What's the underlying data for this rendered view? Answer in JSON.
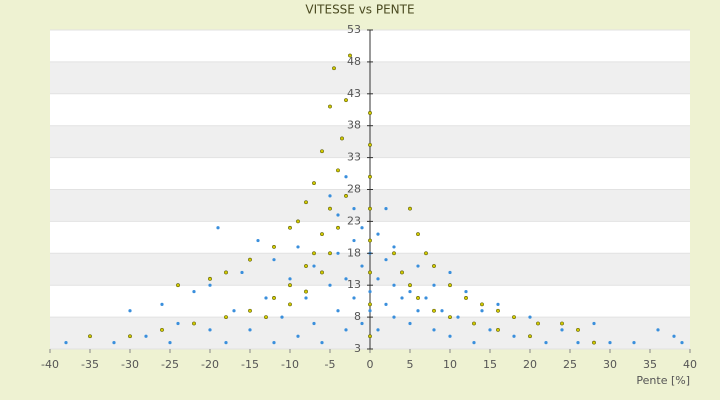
{
  "chart_data": {
    "type": "scatter",
    "title": "VITESSE vs PENTE",
    "x_label": "Pente [%]",
    "xlim": [
      -40,
      40
    ],
    "xticks": [
      -40,
      -35,
      -30,
      -25,
      -20,
      -15,
      -10,
      -5,
      0,
      5,
      10,
      15,
      20,
      25,
      30,
      35,
      40
    ],
    "ylim": [
      3,
      53
    ],
    "yticks": [
      3,
      8,
      13,
      18,
      23,
      28,
      33,
      38,
      43,
      48,
      53
    ],
    "grid": true,
    "series": [
      {
        "color": "#3a8fdc",
        "x": [
          -38,
          -35,
          -32,
          -30,
          -28,
          -26,
          -25,
          -24,
          -22,
          -20,
          -20,
          -19,
          -18,
          -17,
          -16,
          -15,
          -14,
          -13,
          -12,
          -12,
          -11,
          -10,
          -10,
          -9,
          -9,
          -8,
          -8,
          -7,
          -7,
          -6,
          -6,
          -5,
          -5,
          -4,
          -4,
          -4,
          -3,
          -3,
          -3,
          -2,
          -2,
          -2,
          -1,
          -1,
          -1,
          0,
          0,
          0,
          1,
          1,
          1,
          2,
          2,
          2,
          3,
          3,
          3,
          4,
          4,
          5,
          5,
          6,
          6,
          7,
          8,
          8,
          9,
          10,
          10,
          11,
          12,
          13,
          14,
          15,
          16,
          18,
          20,
          22,
          24,
          26,
          28,
          30,
          33,
          36,
          38,
          39
        ],
        "y": [
          4,
          5,
          4,
          9,
          5,
          10,
          4,
          7,
          12,
          6,
          13,
          22,
          4,
          9,
          15,
          6,
          20,
          11,
          4,
          17,
          8,
          14,
          22,
          5,
          19,
          11,
          26,
          7,
          16,
          21,
          4,
          13,
          27,
          9,
          18,
          24,
          6,
          14,
          30,
          11,
          20,
          25,
          7,
          16,
          22,
          12,
          18,
          9,
          14,
          21,
          6,
          10,
          17,
          25,
          8,
          13,
          19,
          11,
          15,
          7,
          12,
          9,
          16,
          11,
          6,
          13,
          9,
          5,
          15,
          8,
          12,
          4,
          9,
          6,
          10,
          5,
          8,
          4,
          6,
          4,
          7,
          4,
          4,
          6,
          5,
          4
        ]
      },
      {
        "color": "#d4cc00",
        "x": [
          -2.5,
          -3,
          -3.5,
          -4,
          -5,
          -6,
          -7,
          -8,
          -10,
          -12,
          -15,
          -18,
          -22,
          -26,
          -30,
          -35,
          -4.5,
          -5,
          -6,
          -7,
          -8,
          -9,
          -10,
          -12,
          -15,
          -18,
          -20,
          -24,
          -3,
          -4,
          -5,
          -6,
          -8,
          -10,
          -13,
          0,
          0,
          0,
          0,
          0,
          0,
          0,
          0,
          5,
          6,
          7,
          8,
          10,
          12,
          14,
          16,
          18,
          21,
          24,
          26,
          3,
          4,
          5,
          6,
          8,
          10,
          13,
          16,
          20,
          28
        ],
        "y": [
          49,
          42,
          36,
          31,
          25,
          21,
          18,
          16,
          13,
          11,
          9,
          8,
          7,
          6,
          5,
          5,
          47,
          41,
          34,
          29,
          26,
          23,
          22,
          19,
          17,
          15,
          14,
          13,
          27,
          22,
          18,
          15,
          12,
          10,
          8,
          5,
          10,
          15,
          20,
          25,
          30,
          35,
          40,
          25,
          21,
          18,
          16,
          13,
          11,
          10,
          9,
          8,
          7,
          7,
          6,
          18,
          15,
          13,
          11,
          9,
          8,
          7,
          6,
          5,
          4
        ]
      }
    ]
  }
}
